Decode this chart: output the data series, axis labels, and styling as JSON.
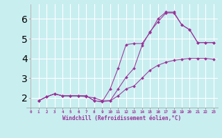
{
  "xlabel": "Windchill (Refroidissement éolien,°C)",
  "background_color": "#c8eef0",
  "line_color": "#993399",
  "grid_color": "#ffffff",
  "xlim": [
    -0.5,
    23.5
  ],
  "ylim": [
    1.5,
    6.75
  ],
  "xticks": [
    0,
    1,
    2,
    3,
    4,
    5,
    6,
    7,
    8,
    9,
    10,
    11,
    12,
    13,
    14,
    15,
    16,
    17,
    18,
    19,
    20,
    21,
    22,
    23
  ],
  "yticks": [
    2,
    3,
    4,
    5,
    6
  ],
  "line1_x": [
    1,
    2,
    3,
    4,
    5,
    6,
    7,
    8,
    9,
    10,
    11,
    12,
    13,
    14,
    15,
    16,
    17,
    18,
    19,
    20,
    21,
    22,
    23
  ],
  "line1_y": [
    1.85,
    2.05,
    2.2,
    2.1,
    2.1,
    2.1,
    2.1,
    1.85,
    1.8,
    1.85,
    2.45,
    3.05,
    3.5,
    4.65,
    5.35,
    5.85,
    6.3,
    6.3,
    5.7,
    5.45,
    4.8,
    4.8,
    4.8
  ],
  "line2_x": [
    1,
    2,
    3,
    4,
    5,
    6,
    7,
    8,
    9,
    10,
    11,
    12,
    13,
    14,
    15,
    16,
    17,
    18,
    19,
    20,
    21,
    22,
    23
  ],
  "line2_y": [
    1.85,
    2.05,
    2.2,
    2.1,
    2.1,
    2.1,
    2.1,
    1.85,
    1.8,
    2.45,
    3.5,
    4.7,
    4.75,
    4.75,
    5.3,
    6.0,
    6.35,
    6.35,
    5.7,
    5.45,
    4.8,
    4.8,
    4.8
  ],
  "line3_x": [
    1,
    2,
    3,
    4,
    5,
    6,
    7,
    8,
    9,
    10,
    11,
    12,
    13,
    14,
    15,
    16,
    17,
    18,
    19,
    20,
    21,
    22,
    23
  ],
  "line3_y": [
    1.85,
    2.05,
    2.2,
    2.1,
    2.1,
    2.1,
    2.05,
    2.0,
    1.85,
    1.85,
    2.1,
    2.45,
    2.6,
    3.0,
    3.4,
    3.65,
    3.8,
    3.9,
    3.95,
    4.0,
    4.0,
    4.0,
    3.95
  ]
}
